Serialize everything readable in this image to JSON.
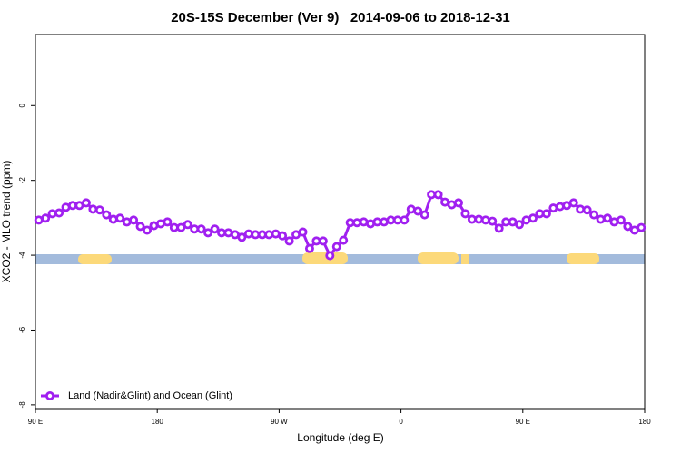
{
  "chart_data": {
    "type": "line",
    "title": "20S-15S December (Ver 9)   2014-09-06 to 2018-12-31",
    "x_label": "Longitude (deg E)",
    "y_label": "XCO2 - MLO trend (ppm)",
    "xlim": [
      90,
      540
    ],
    "xticks": [
      {
        "value": 90,
        "label": "90 E"
      },
      180,
      {
        "value": 270,
        "label": "90 W"
      },
      {
        "value": 360,
        "label": "0"
      },
      {
        "value": 450,
        "label": "90 E"
      },
      {
        "value": 540,
        "label": "180"
      }
    ],
    "ylim": [
      -8.1,
      1.9
    ],
    "yticks": [
      0,
      -2,
      -4,
      -6,
      -8
    ],
    "legend": "bottom-left",
    "x": [
      92.5,
      97.5,
      102.5,
      107.5,
      112.5,
      117.5,
      122.5,
      127.5,
      132.5,
      137.5,
      142.5,
      147.5,
      152.5,
      157.5,
      162.5,
      167.5,
      172.5,
      177.5,
      182.5,
      187.5,
      192.5,
      197.5,
      202.5,
      207.5,
      212.5,
      217.5,
      222.5,
      227.5,
      232.5,
      237.5,
      242.5,
      247.5,
      252.5,
      257.5,
      262.5,
      267.5,
      272.5,
      277.5,
      282.5,
      287.5,
      292.5,
      297.5,
      302.5,
      307.5,
      312.5,
      317.5,
      322.5,
      327.5,
      332.5,
      337.5,
      342.5,
      347.5,
      352.5,
      357.5,
      362.5,
      367.5,
      372.5,
      377.5,
      382.5,
      387.5,
      392.5,
      397.5,
      402.5,
      407.5,
      412.5,
      417.5,
      422.5,
      427.5,
      432.5,
      437.5,
      442.5,
      447.5,
      452.5,
      457.5,
      462.5,
      467.5,
      472.5,
      477.5,
      482.5,
      487.5,
      492.5,
      497.5,
      502.5,
      507.5,
      512.5,
      517.5,
      522.5,
      527.5,
      532.5,
      537.5
    ],
    "series": [
      {
        "name": "Land (Nadir&Glint) and Ocean (Glint)",
        "color": "#a020f0",
        "values": [
          -3.06,
          -3.01,
          -2.89,
          -2.87,
          -2.72,
          -2.67,
          -2.67,
          -2.6,
          -2.77,
          -2.79,
          -2.92,
          -3.04,
          -3.01,
          -3.11,
          -3.06,
          -3.23,
          -3.33,
          -3.21,
          -3.16,
          -3.11,
          -3.26,
          -3.26,
          -3.18,
          -3.3,
          -3.3,
          -3.4,
          -3.3,
          -3.4,
          -3.4,
          -3.45,
          -3.52,
          -3.43,
          -3.45,
          -3.45,
          -3.45,
          -3.43,
          -3.48,
          -3.62,
          -3.45,
          -3.38,
          -3.82,
          -3.62,
          -3.62,
          -4.01,
          -3.77,
          -3.6,
          -3.13,
          -3.13,
          -3.11,
          -3.16,
          -3.11,
          -3.11,
          -3.06,
          -3.06,
          -3.06,
          -2.77,
          -2.82,
          -2.92,
          -2.38,
          -2.38,
          -2.58,
          -2.65,
          -2.6,
          -2.89,
          -3.04,
          -3.04,
          -3.06,
          -3.09,
          -3.28,
          -3.11,
          -3.11,
          -3.18,
          -3.06,
          -3.01,
          -2.89,
          -2.89,
          -2.74,
          -2.7,
          -2.67,
          -2.6,
          -2.77,
          -2.79,
          -2.92,
          -3.04,
          -3.01,
          -3.11,
          -3.06,
          -3.23,
          -3.33,
          -3.26
        ]
      }
    ]
  }
}
